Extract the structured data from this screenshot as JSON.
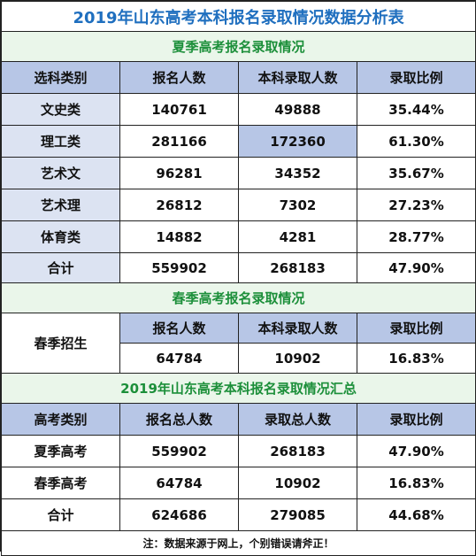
{
  "title": "2019年山东高考本科报名录取情况数据分析表",
  "summer": {
    "section_title": "夏季高考报名录取情况",
    "headers": [
      "选科类别",
      "报名人数",
      "本科录取人数",
      "录取比例"
    ],
    "rows": [
      [
        "文史类",
        "140761",
        "49888",
        "35.44%"
      ],
      [
        "理工类",
        "281166",
        "172360",
        "61.30%"
      ],
      [
        "艺术文",
        "96281",
        "34352",
        "35.67%"
      ],
      [
        "艺术理",
        "26812",
        "7302",
        "27.23%"
      ],
      [
        "体育类",
        "14882",
        "4281",
        "28.77%"
      ],
      [
        "合计",
        "559902",
        "268183",
        "47.90%"
      ]
    ]
  },
  "spring": {
    "section_title": "春季高考报名录取情况",
    "label": "春季招生",
    "headers": [
      "报名人数",
      "本科录取人数",
      "录取比例"
    ],
    "values": [
      "64784",
      "10902",
      "16.83%"
    ]
  },
  "summary": {
    "section_title": "2019年山东高考本科报名录取情况汇总",
    "headers": [
      "高考类别",
      "报名总人数",
      "录取总人数",
      "录取比例"
    ],
    "rows": [
      [
        "夏季高考",
        "559902",
        "268183",
        "47.90%"
      ],
      [
        "春季高考",
        "64784",
        "10902",
        "16.83%"
      ],
      [
        "合计",
        "624686",
        "279085",
        "44.68%"
      ]
    ]
  },
  "note": "注：数据来源于网上，个别错误请斧正！"
}
